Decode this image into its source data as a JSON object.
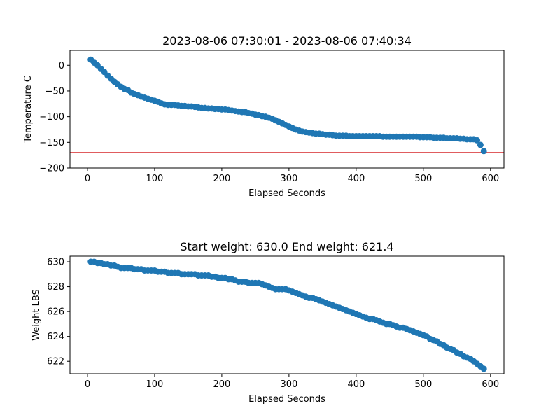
{
  "chart_data": [
    {
      "type": "scatter",
      "title": "2023-08-06 07:30:01 - 2023-08-06 07:40:34",
      "xlabel": "Elapsed Seconds",
      "ylabel": "Temperature C",
      "xlim": [
        -26,
        620
      ],
      "ylim": [
        -200,
        29
      ],
      "xticks": [
        0,
        100,
        200,
        300,
        400,
        500,
        600
      ],
      "yticks": [
        0,
        -50,
        -100,
        -150,
        -200
      ],
      "grid": false,
      "hline": {
        "y": -170,
        "color": "#d62728"
      },
      "marker_color": "#1f77b4",
      "series": [
        {
          "x": [
            5,
            10,
            15,
            20,
            25,
            30,
            35,
            40,
            45,
            50,
            55,
            60,
            65,
            70,
            75,
            80,
            85,
            90,
            95,
            100,
            105,
            110,
            115,
            120,
            125,
            130,
            135,
            140,
            145,
            150,
            155,
            160,
            165,
            170,
            175,
            180,
            185,
            190,
            195,
            200,
            205,
            210,
            215,
            220,
            225,
            230,
            235,
            240,
            245,
            250,
            255,
            260,
            265,
            270,
            275,
            280,
            285,
            290,
            295,
            300,
            305,
            310,
            315,
            320,
            325,
            330,
            335,
            340,
            345,
            350,
            355,
            360,
            365,
            370,
            375,
            380,
            385,
            390,
            395,
            400,
            405,
            410,
            415,
            420,
            425,
            430,
            435,
            440,
            445,
            450,
            455,
            460,
            465,
            470,
            475,
            480,
            485,
            490,
            495,
            500,
            505,
            510,
            515,
            520,
            525,
            530,
            535,
            540,
            545,
            550,
            555,
            560,
            565,
            570,
            575,
            580,
            585,
            590
          ],
          "y": [
            11,
            5,
            0,
            -7,
            -13,
            -20,
            -26,
            -32,
            -37,
            -42,
            -46,
            -48,
            -53,
            -56,
            -58,
            -61,
            -63,
            -65,
            -67,
            -69,
            -71,
            -74,
            -76,
            -77,
            -77,
            -77,
            -78,
            -79,
            -79,
            -80,
            -80,
            -81,
            -82,
            -83,
            -83,
            -84,
            -84,
            -85,
            -85,
            -86,
            -86,
            -87,
            -88,
            -89,
            -90,
            -91,
            -91,
            -93,
            -94,
            -96,
            -97,
            -99,
            -100,
            -102,
            -104,
            -107,
            -110,
            -113,
            -116,
            -119,
            -122,
            -125,
            -127,
            -129,
            -130,
            -131,
            -132,
            -133,
            -133,
            -134,
            -135,
            -135,
            -136,
            -137,
            -137,
            -137,
            -137,
            -138,
            -138,
            -138,
            -138,
            -138,
            -138,
            -138,
            -138,
            -138,
            -138,
            -139,
            -139,
            -139,
            -139,
            -139,
            -139,
            -139,
            -139,
            -139,
            -139,
            -139,
            -140,
            -140,
            -140,
            -140,
            -141,
            -141,
            -141,
            -141,
            -142,
            -142,
            -142,
            -142,
            -143,
            -143,
            -144,
            -144,
            -144,
            -146,
            -155,
            -167
          ]
        }
      ]
    },
    {
      "type": "scatter",
      "title": "Start weight: 630.0 End weight: 621.4",
      "xlabel": "Elapsed Seconds",
      "ylabel": "Weight LBS",
      "xlim": [
        -26,
        620
      ],
      "ylim": [
        621.0,
        630.45
      ],
      "xticks": [
        0,
        100,
        200,
        300,
        400,
        500,
        600
      ],
      "yticks": [
        622,
        624,
        626,
        628,
        630
      ],
      "grid": false,
      "marker_color": "#1f77b4",
      "series": [
        {
          "x": [
            5,
            10,
            15,
            20,
            25,
            30,
            35,
            40,
            45,
            50,
            55,
            60,
            65,
            70,
            75,
            80,
            85,
            90,
            95,
            100,
            105,
            110,
            115,
            120,
            125,
            130,
            135,
            140,
            145,
            150,
            155,
            160,
            165,
            170,
            175,
            180,
            185,
            190,
            195,
            200,
            205,
            210,
            215,
            220,
            225,
            230,
            235,
            240,
            245,
            250,
            255,
            260,
            265,
            270,
            275,
            280,
            285,
            290,
            295,
            300,
            305,
            310,
            315,
            320,
            325,
            330,
            335,
            340,
            345,
            350,
            355,
            360,
            365,
            370,
            375,
            380,
            385,
            390,
            395,
            400,
            405,
            410,
            415,
            420,
            425,
            430,
            435,
            440,
            445,
            450,
            455,
            460,
            465,
            470,
            475,
            480,
            485,
            490,
            495,
            500,
            505,
            510,
            515,
            520,
            525,
            530,
            535,
            540,
            545,
            550,
            555,
            560,
            565,
            570,
            575,
            580,
            585,
            590
          ],
          "y": [
            630.0,
            630.0,
            629.9,
            629.9,
            629.8,
            629.8,
            629.7,
            629.7,
            629.6,
            629.5,
            629.5,
            629.5,
            629.5,
            629.4,
            629.4,
            629.4,
            629.3,
            629.3,
            629.3,
            629.3,
            629.2,
            629.2,
            629.2,
            629.1,
            629.1,
            629.1,
            629.1,
            629.0,
            629.0,
            629.0,
            629.0,
            629.0,
            628.9,
            628.9,
            628.9,
            628.9,
            628.8,
            628.8,
            628.7,
            628.7,
            628.7,
            628.6,
            628.6,
            628.5,
            628.4,
            628.4,
            628.4,
            628.3,
            628.3,
            628.3,
            628.3,
            628.2,
            628.1,
            628.0,
            627.9,
            627.8,
            627.8,
            627.8,
            627.8,
            627.7,
            627.6,
            627.5,
            627.4,
            627.3,
            627.2,
            627.1,
            627.1,
            627.0,
            626.9,
            626.8,
            626.7,
            626.6,
            626.5,
            626.4,
            626.3,
            626.2,
            626.1,
            626.0,
            625.9,
            625.8,
            625.7,
            625.6,
            625.5,
            625.4,
            625.4,
            625.3,
            625.2,
            625.1,
            625.0,
            625.0,
            624.9,
            624.8,
            624.7,
            624.7,
            624.6,
            624.5,
            624.4,
            624.3,
            624.2,
            624.1,
            624.0,
            623.8,
            623.7,
            623.6,
            623.4,
            623.3,
            623.1,
            623.0,
            622.9,
            622.7,
            622.6,
            622.4,
            622.3,
            622.2,
            622.0,
            621.8,
            621.6,
            621.4
          ]
        }
      ]
    }
  ]
}
